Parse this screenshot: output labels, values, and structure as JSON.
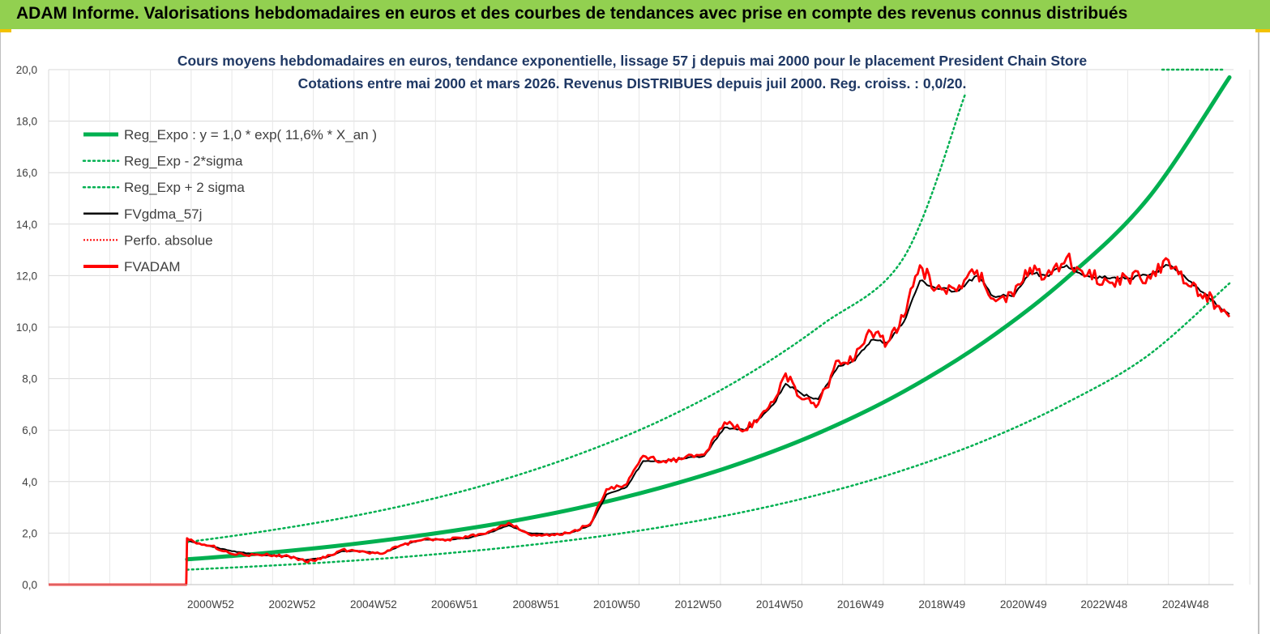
{
  "banner": {
    "title": "ADAM Informe. Valorisations hebdomadaires en euros et des courbes de tendances avec prise en compte des revenus connus distribués"
  },
  "colors": {
    "banner": "#92d050",
    "trend": "#00b050",
    "adam": "#ff0000",
    "smooth": "#000000",
    "grid": "#d9d9d9"
  },
  "chart_data": {
    "type": "line",
    "title_line1": "Cours moyens hebdomadaires en euros, tendance exponentielle, lissage 57 j depuis mai 2000 pour le placement President Chain Store",
    "title_line2": "Cotations entre mai 2000 et mars 2026. Revenus DISTRIBUES depuis juil 2000. Reg. croiss. : 0,0/20.",
    "ylim": [
      0,
      20
    ],
    "yticks": [
      "0,0",
      "2,0",
      "4,0",
      "6,0",
      "8,0",
      "10,0",
      "12,0",
      "14,0",
      "16,0",
      "18,0",
      "20,0"
    ],
    "xlim": [
      1997,
      2026.1
    ],
    "xticks": [
      {
        "label": "2000W52",
        "x": 2000.98
      },
      {
        "label": "2002W52",
        "x": 2002.98
      },
      {
        "label": "2004W52",
        "x": 2004.98
      },
      {
        "label": "2006W51",
        "x": 2006.97
      },
      {
        "label": "2008W51",
        "x": 2008.97
      },
      {
        "label": "2010W50",
        "x": 2010.95
      },
      {
        "label": "2012W50",
        "x": 2012.95
      },
      {
        "label": "2014W50",
        "x": 2014.95
      },
      {
        "label": "2016W49",
        "x": 2016.94
      },
      {
        "label": "2018W49",
        "x": 2018.94
      },
      {
        "label": "2020W49",
        "x": 2020.94
      },
      {
        "label": "2022W48",
        "x": 2022.92
      },
      {
        "label": "2024W48",
        "x": 2024.92
      }
    ],
    "legend": [
      {
        "label": "Reg_Expo : y = 1,0 * exp( 11,6% *  X_an )",
        "style": "trend"
      },
      {
        "label": "Reg_Exp - 2*sigma",
        "style": "band"
      },
      {
        "label": "Reg_Exp + 2 sigma",
        "style": "band"
      },
      {
        "label": "FVgdma_57j",
        "style": "smooth"
      },
      {
        "label": "Perfo. absolue",
        "style": "perf"
      },
      {
        "label": "FVADAM",
        "style": "adam"
      }
    ],
    "series": [
      {
        "name": "Reg_Expo",
        "x": [
          2000.4,
          2002,
          2004,
          2006,
          2008,
          2010,
          2012,
          2014,
          2016,
          2018,
          2020,
          2022,
          2024,
          2026
        ],
        "values": [
          0.98,
          1.18,
          1.49,
          1.88,
          2.36,
          2.97,
          3.75,
          4.72,
          5.95,
          7.5,
          9.45,
          11.9,
          15.0,
          19.7
        ]
      },
      {
        "name": "Reg_Exp - 2*sigma",
        "x": [
          2000.4,
          2002,
          2004,
          2006,
          2008,
          2010,
          2012,
          2014,
          2016,
          2018,
          2020,
          2022,
          2024,
          2026
        ],
        "values": [
          0.58,
          0.7,
          0.88,
          1.11,
          1.4,
          1.76,
          2.22,
          2.8,
          3.53,
          4.45,
          5.6,
          7.06,
          8.9,
          11.7
        ]
      },
      {
        "name": "Reg_Exp + 2 sigma",
        "x": [
          2000.4,
          2002,
          2004,
          2006,
          2008,
          2010,
          2012,
          2014,
          2016,
          2018,
          2019.5,
          2024.5,
          2026
        ],
        "values": [
          1.65,
          2.0,
          2.52,
          3.17,
          4.0,
          5.05,
          6.35,
          8.0,
          10.1,
          12.7,
          19.0,
          20.0,
          20.0
        ]
      },
      {
        "name": "FVgdma_57j",
        "x": [
          2000.45,
          2000.8,
          2001.5,
          2002.2,
          2002.9,
          2003.3,
          2003.8,
          2004.2,
          2004.7,
          2005.2,
          2005.7,
          2006.2,
          2006.8,
          2007.3,
          2007.8,
          2008.3,
          2008.8,
          2009.3,
          2009.8,
          2010.3,
          2010.7,
          2011.2,
          2011.6,
          2012.1,
          2012.6,
          2013.1,
          2013.6,
          2014.1,
          2014.5,
          2014.8,
          2015.1,
          2015.5,
          2015.9,
          2016.4,
          2016.8,
          2017.2,
          2017.6,
          2018.0,
          2018.4,
          2018.8,
          2019.3,
          2019.8,
          2020.2,
          2020.7,
          2021.1,
          2021.5,
          2022.0,
          2022.5,
          2023.0,
          2023.5,
          2024.0,
          2024.5,
          2025.0,
          2025.4,
          2025.8,
          2026.0
        ],
        "values": [
          1.7,
          1.55,
          1.3,
          1.15,
          1.1,
          0.95,
          1.05,
          1.3,
          1.3,
          1.2,
          1.55,
          1.75,
          1.75,
          1.8,
          2.0,
          2.3,
          2.0,
          1.95,
          2.0,
          2.3,
          3.5,
          3.8,
          4.8,
          4.8,
          4.9,
          5.0,
          6.1,
          6.0,
          6.5,
          7.0,
          7.8,
          7.4,
          7.2,
          8.5,
          8.7,
          9.5,
          9.4,
          10.2,
          11.8,
          11.5,
          11.4,
          12.0,
          11.2,
          11.2,
          12.1,
          12.0,
          12.4,
          12.0,
          11.9,
          11.9,
          12.0,
          12.4,
          11.8,
          11.3,
          10.7,
          10.5
        ]
      },
      {
        "name": "FVADAM",
        "x": [
          1997.0,
          2000.38,
          2000.4,
          2000.5,
          2000.7,
          2001.0,
          2001.3,
          2001.8,
          2002.3,
          2002.9,
          2003.3,
          2003.8,
          2004.2,
          2004.7,
          2005.2,
          2005.7,
          2006.2,
          2006.8,
          2007.3,
          2007.8,
          2008.3,
          2008.8,
          2009.3,
          2009.8,
          2010.3,
          2010.7,
          2011.2,
          2011.6,
          2012.1,
          2012.6,
          2013.1,
          2013.6,
          2014.1,
          2014.5,
          2014.8,
          2015.1,
          2015.5,
          2015.9,
          2016.4,
          2016.8,
          2017.2,
          2017.6,
          2018.0,
          2018.4,
          2018.8,
          2019.3,
          2019.8,
          2020.2,
          2020.7,
          2021.1,
          2021.5,
          2022.0,
          2022.5,
          2023.0,
          2023.5,
          2024.0,
          2024.5,
          2025.0,
          2025.4,
          2025.8,
          2026.0
        ],
        "values": [
          0.0,
          0.0,
          1.8,
          1.75,
          1.6,
          1.5,
          1.3,
          1.15,
          1.15,
          1.1,
          0.9,
          1.05,
          1.35,
          1.3,
          1.2,
          1.55,
          1.75,
          1.75,
          1.85,
          2.05,
          2.4,
          1.95,
          1.9,
          2.0,
          2.35,
          3.7,
          3.9,
          5.0,
          4.8,
          4.9,
          5.05,
          6.3,
          6.0,
          6.6,
          7.1,
          8.2,
          7.2,
          7.0,
          8.7,
          8.8,
          9.8,
          9.4,
          10.4,
          12.4,
          11.5,
          11.4,
          12.2,
          11.1,
          11.2,
          12.3,
          12.0,
          12.7,
          12.0,
          11.8,
          11.9,
          12.0,
          12.6,
          11.6,
          11.3,
          10.6,
          10.4
        ]
      }
    ]
  }
}
